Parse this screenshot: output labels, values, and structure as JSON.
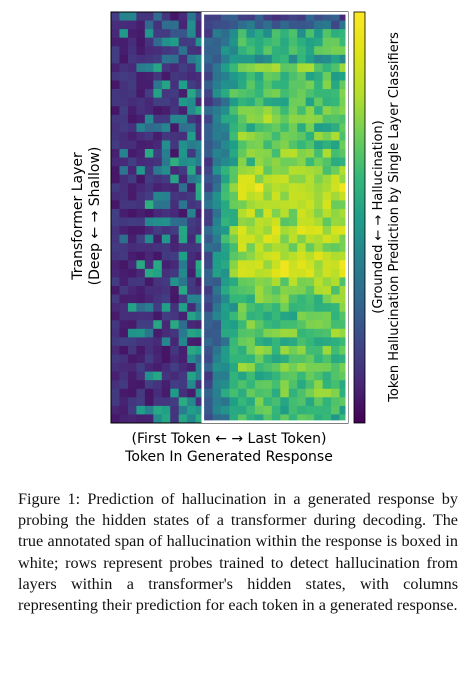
{
  "figure": {
    "caption": "Figure 1: Prediction of hallucination in a generated response by probing the hidden states of a transformer during decoding. The true annotated span of hallucination within the response is boxed in white; rows represent probes trained to detect hallucination from layers within a transformer's hidden states, with columns representing their prediction for each token in a generated response."
  },
  "chart_data": {
    "type": "heatmap",
    "xlabel_line1": "(First Token ←  → Last Token)",
    "xlabel_line2": "Token In Generated Response",
    "ylabel_line1": "Transformer Layer",
    "ylabel_line2": "(Deep ←  → Shallow)",
    "colorbar_label_line1": "(Grounded ←  → Hallucination)",
    "colorbar_label_line2": "Token Hallucination Prediction by Single Layer Classifiers",
    "colormap": "viridis",
    "value_range": [
      0,
      1
    ],
    "n_layers": 48,
    "n_tokens": 28,
    "hallucination_span_tokens": [
      11,
      27
    ],
    "box_color": "#ffffff",
    "row_stats": [
      {
        "base": 0.22,
        "span": 0.2
      },
      {
        "base": 0.22,
        "span": 0.28
      },
      {
        "base": 0.24,
        "span": 0.55
      },
      {
        "base": 0.28,
        "span": 0.58
      },
      {
        "base": 0.3,
        "span": 0.62
      },
      {
        "base": 0.32,
        "span": 0.5
      },
      {
        "base": 0.3,
        "span": 0.68
      },
      {
        "base": 0.3,
        "span": 0.6
      },
      {
        "base": 0.32,
        "span": 0.64
      },
      {
        "base": 0.3,
        "span": 0.7
      },
      {
        "base": 0.3,
        "span": 0.62
      },
      {
        "base": 0.32,
        "span": 0.66
      },
      {
        "base": 0.28,
        "span": 0.72
      },
      {
        "base": 0.3,
        "span": 0.6
      },
      {
        "base": 0.32,
        "span": 0.68
      },
      {
        "base": 0.3,
        "span": 0.62
      },
      {
        "base": 0.34,
        "span": 0.7
      },
      {
        "base": 0.32,
        "span": 0.66
      },
      {
        "base": 0.3,
        "span": 0.74
      },
      {
        "base": 0.34,
        "span": 0.82
      },
      {
        "base": 0.32,
        "span": 0.86
      },
      {
        "base": 0.3,
        "span": 0.84
      },
      {
        "base": 0.34,
        "span": 0.8
      },
      {
        "base": 0.32,
        "span": 0.78
      },
      {
        "base": 0.3,
        "span": 0.76
      },
      {
        "base": 0.36,
        "span": 0.84
      },
      {
        "base": 0.32,
        "span": 0.82
      },
      {
        "base": 0.3,
        "span": 0.78
      },
      {
        "base": 0.32,
        "span": 0.8
      },
      {
        "base": 0.34,
        "span": 0.86
      },
      {
        "base": 0.3,
        "span": 0.84
      },
      {
        "base": 0.32,
        "span": 0.72
      },
      {
        "base": 0.34,
        "span": 0.7
      },
      {
        "base": 0.3,
        "span": 0.66
      },
      {
        "base": 0.32,
        "span": 0.64
      },
      {
        "base": 0.34,
        "span": 0.62
      },
      {
        "base": 0.3,
        "span": 0.68
      },
      {
        "base": 0.32,
        "span": 0.7
      },
      {
        "base": 0.34,
        "span": 0.6
      },
      {
        "base": 0.32,
        "span": 0.66
      },
      {
        "base": 0.3,
        "span": 0.62
      },
      {
        "base": 0.34,
        "span": 0.68
      },
      {
        "base": 0.32,
        "span": 0.6
      },
      {
        "base": 0.3,
        "span": 0.64
      },
      {
        "base": 0.32,
        "span": 0.66
      },
      {
        "base": 0.34,
        "span": 0.62
      },
      {
        "base": 0.3,
        "span": 0.6
      },
      {
        "base": 0.32,
        "span": 0.58
      }
    ]
  }
}
